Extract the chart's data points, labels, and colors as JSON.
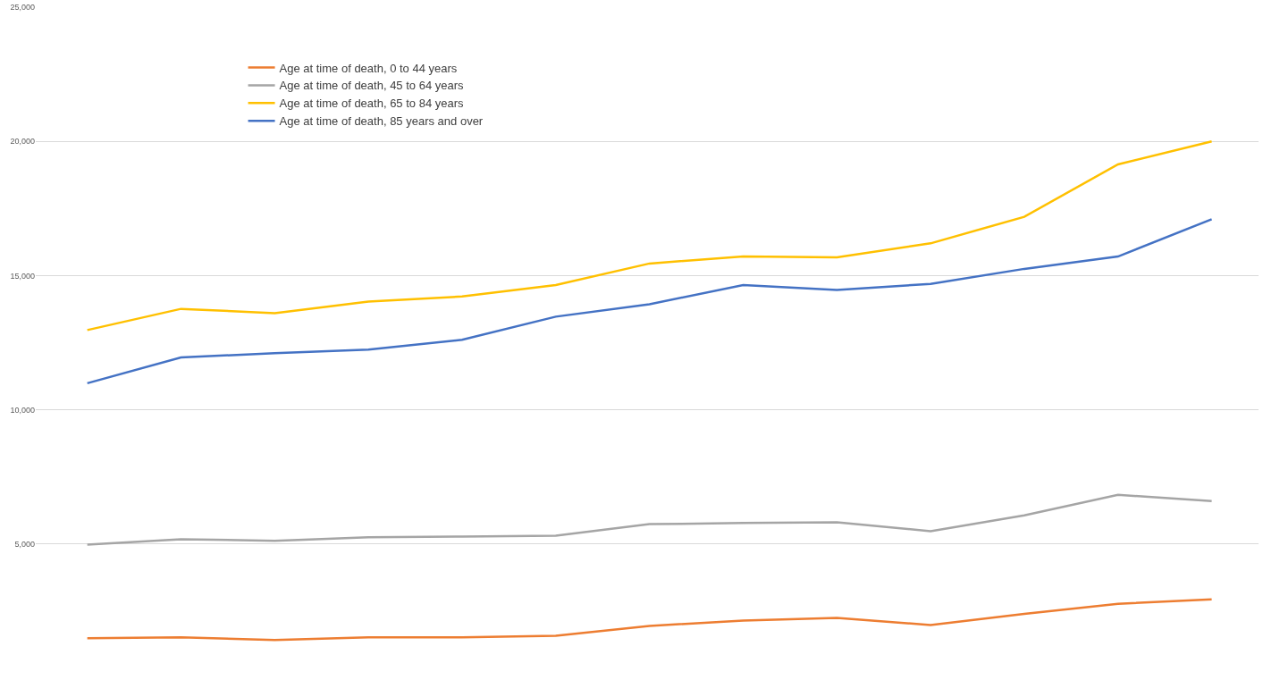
{
  "chart_data": {
    "type": "line",
    "categories": [
      null,
      null,
      null,
      null,
      null,
      null,
      null,
      null,
      null,
      null,
      null,
      null,
      null
    ],
    "series": [
      {
        "name": "Age at time of death, 0 to 44 years",
        "color": "#ed7d31",
        "values": [
          1490,
          1520,
          1420,
          1520,
          1520,
          1580,
          1950,
          2150,
          2250,
          1980,
          2400,
          2770,
          2940
        ]
      },
      {
        "name": "Age at time of death, 45 to 64 years",
        "color": "#a5a5a5",
        "values": [
          4980,
          5180,
          5120,
          5250,
          5280,
          5310,
          5740,
          5780,
          5810,
          5480,
          6070,
          6830,
          6600
        ]
      },
      {
        "name": "Age at time of death, 65 to 84 years",
        "color": "#ffc000",
        "values": [
          12970,
          13760,
          13600,
          14030,
          14220,
          14650,
          15450,
          15710,
          15680,
          16200,
          17190,
          19140,
          20000
        ]
      },
      {
        "name": "Age at time of death, 85 years and over",
        "color": "#4472c4",
        "values": [
          10990,
          11950,
          12110,
          12240,
          12610,
          13470,
          13930,
          14650,
          14460,
          14690,
          15250,
          15710,
          17100
        ]
      }
    ],
    "ylim": [
      0,
      25000
    ],
    "yticks": [
      {
        "value": 5000,
        "label": "5,000"
      },
      {
        "value": 10000,
        "label": "10,000"
      },
      {
        "value": 15000,
        "label": "15,000"
      },
      {
        "value": 20000,
        "label": "20,000"
      },
      {
        "value": 25000,
        "label": "25,000"
      }
    ],
    "grid": "y",
    "legend": "top left",
    "tick_labels": "y",
    "marker": "none",
    "line_style": "solid"
  }
}
